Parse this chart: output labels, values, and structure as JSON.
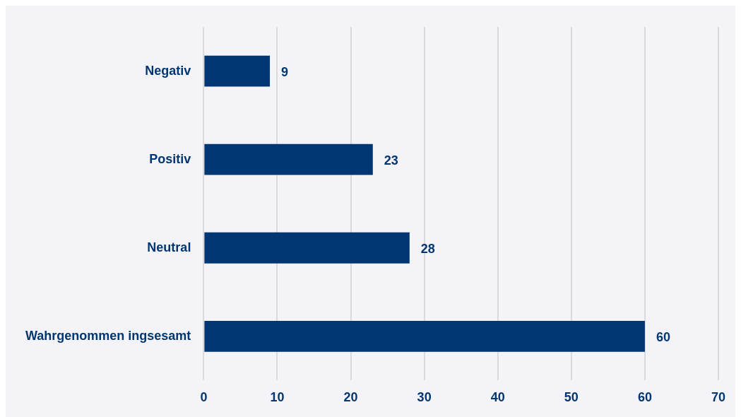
{
  "chart_data": {
    "type": "bar",
    "orientation": "horizontal",
    "categories": [
      "Negativ",
      "Positiv",
      "Neutral",
      "Wahrgenommen ingsesamt"
    ],
    "values": [
      9,
      23,
      28,
      60
    ],
    "color": "#003671",
    "xlim": [
      0,
      70
    ],
    "xticks": [
      0,
      10,
      20,
      30,
      40,
      50,
      60,
      70
    ],
    "grid": "x",
    "data_labels": true,
    "legend": false
  }
}
